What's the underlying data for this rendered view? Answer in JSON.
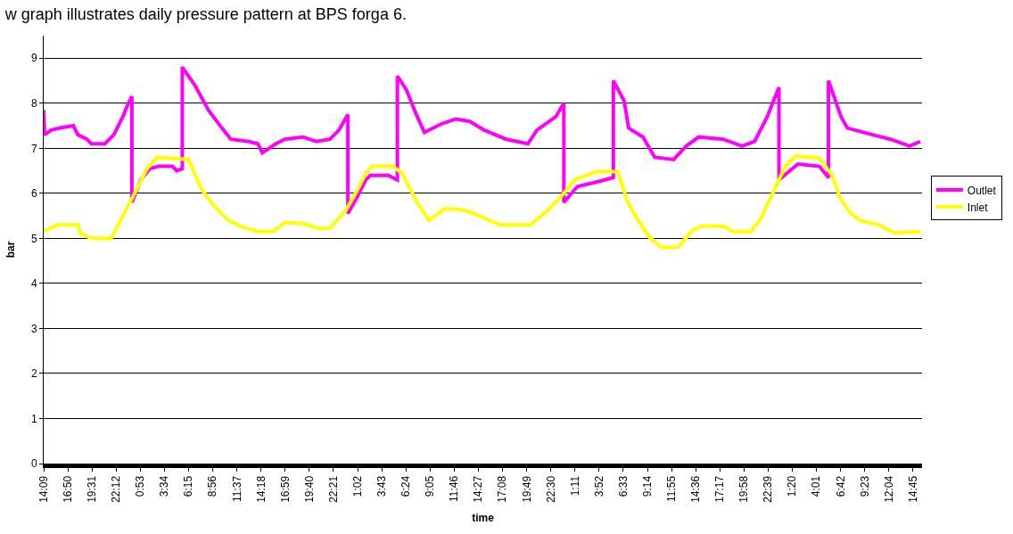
{
  "chart_data": {
    "type": "line",
    "title": "w graph illustrates daily pressure pattern at BPS forga 6.",
    "xlabel": "time",
    "ylabel": "bar",
    "xlim": [
      "--01-01T14:09",
      "--01-05T15:45"
    ],
    "ylim": [
      0,
      9.5
    ],
    "yticks": [
      0,
      1,
      2,
      3,
      4,
      5,
      6,
      7,
      8,
      9
    ],
    "xticks": [
      {
        "value": "--01-01T14:09",
        "label": "14:09"
      },
      {
        "value": "--01-01T16:50",
        "label": "16:50"
      },
      {
        "value": "--01-01T19:31",
        "label": "19:31"
      },
      {
        "value": "--01-01T22:12",
        "label": "22:12"
      },
      {
        "value": "--01-02T00:53",
        "label": "0:53"
      },
      {
        "value": "--01-02T03:34",
        "label": "3:34"
      },
      {
        "value": "--01-02T06:15",
        "label": "6:15"
      },
      {
        "value": "--01-02T08:56",
        "label": "8:56"
      },
      {
        "value": "--01-02T11:37",
        "label": "11:37"
      },
      {
        "value": "--01-02T14:18",
        "label": "14:18"
      },
      {
        "value": "--01-02T16:59",
        "label": "16:59"
      },
      {
        "value": "--01-02T19:40",
        "label": "19:40"
      },
      {
        "value": "--01-02T22:21",
        "label": "22:21"
      },
      {
        "value": "--01-03T01:02",
        "label": "1:02"
      },
      {
        "value": "--01-03T03:43",
        "label": "3:43"
      },
      {
        "value": "--01-03T06:24",
        "label": "6:24"
      },
      {
        "value": "--01-03T09:05",
        "label": "9:05"
      },
      {
        "value": "--01-03T11:46",
        "label": "11:46"
      },
      {
        "value": "--01-03T14:27",
        "label": "14:27"
      },
      {
        "value": "--01-03T17:08",
        "label": "17:08"
      },
      {
        "value": "--01-03T19:49",
        "label": "19:49"
      },
      {
        "value": "--01-03T22:30",
        "label": "22:30"
      },
      {
        "value": "--01-04T01:11",
        "label": "1:11"
      },
      {
        "value": "--01-04T03:52",
        "label": "3:52"
      },
      {
        "value": "--01-04T06:33",
        "label": "6:33"
      },
      {
        "value": "--01-04T09:14",
        "label": "9:14"
      },
      {
        "value": "--01-04T11:55",
        "label": "11:55"
      },
      {
        "value": "--01-04T14:36",
        "label": "14:36"
      },
      {
        "value": "--01-04T17:17",
        "label": "17:17"
      },
      {
        "value": "--01-04T19:58",
        "label": "19:58"
      },
      {
        "value": "--01-04T22:39",
        "label": "22:39"
      },
      {
        "value": "--01-05T01:20",
        "label": "1:20"
      },
      {
        "value": "--01-05T04:01",
        "label": "4:01"
      },
      {
        "value": "--01-05T06:42",
        "label": "6:42"
      },
      {
        "value": "--01-05T09:23",
        "label": "9:23"
      },
      {
        "value": "--01-05T12:04",
        "label": "12:04"
      },
      {
        "value": "--01-05T14:45",
        "label": "14:45"
      }
    ],
    "grid": "y",
    "legend": "right",
    "marker": "none",
    "line_style": "solid",
    "series": [
      {
        "name": "Outlet",
        "color": "#ff00ff",
        "x": [
          "--01-01T14:09",
          "--01-01T14:15",
          "--01-01T14:57",
          "--01-01T15:57",
          "--01-01T17:27",
          "--01-01T17:57",
          "--01-01T18:57",
          "--01-01T19:27",
          "--01-01T20:57",
          "--01-01T21:57",
          "--01-01T22:57",
          "--01-01T23:27",
          "--01-01T23:57",
          "--01-01T23:57",
          "--01-02T00:57",
          "--01-02T01:57",
          "--01-02T02:57",
          "--01-02T04:27",
          "--01-02T04:57",
          "--01-02T05:33",
          "--01-02T05:33",
          "--01-02T06:57",
          "--01-02T08:27",
          "--01-02T09:57",
          "--01-02T10:57",
          "--01-02T12:57",
          "--01-02T13:57",
          "--01-02T14:27",
          "--01-02T15:57",
          "--01-02T16:57",
          "--01-02T18:57",
          "--01-02T20:27",
          "--01-02T21:57",
          "--01-02T22:57",
          "--01-02T23:57",
          "--01-02T23:57",
          "--01-03T00:57",
          "--01-03T01:57",
          "--01-03T02:27",
          "--01-03T04:27",
          "--01-03T05:27",
          "--01-03T05:27",
          "--01-03T06:27",
          "--01-03T07:27",
          "--01-03T08:27",
          "--01-03T09:27",
          "--01-03T10:27",
          "--01-03T11:57",
          "--01-03T13:27",
          "--01-03T15:09",
          "--01-03T17:33",
          "--01-03T19:57",
          "--01-03T20:57",
          "--01-03T23:03",
          "--01-03T23:57",
          "--01-03T23:57",
          "--01-04T01:27",
          "--01-04T03:33",
          "--01-04T05:27",
          "--01-04T05:27",
          "--01-04T06:39",
          "--01-04T07:09",
          "--01-04T08:45",
          "--01-04T10:03",
          "--01-04T12:09",
          "--01-04T13:33",
          "--01-04T14:57",
          "--01-04T17:39",
          "--01-04T19:45",
          "--01-04T21:09",
          "--01-04T22:33",
          "--01-04T23:51",
          "--01-04T23:51",
          "--01-05T01:57",
          "--01-05T04:21",
          "--01-05T05:21",
          "--01-05T05:21",
          "--01-05T06:45",
          "--01-05T07:27",
          "--01-05T10:15",
          "--01-05T12:15",
          "--01-05T14:21",
          "--01-05T15:33"
        ],
        "values": [
          7.85,
          7.3,
          7.4,
          7.45,
          7.5,
          7.3,
          7.2,
          7.1,
          7.1,
          7.3,
          7.7,
          7.95,
          8.15,
          5.8,
          6.3,
          6.55,
          6.6,
          6.6,
          6.5,
          6.55,
          8.8,
          8.4,
          7.85,
          7.45,
          7.2,
          7.15,
          7.1,
          6.9,
          7.1,
          7.2,
          7.25,
          7.15,
          7.2,
          7.4,
          7.75,
          5.55,
          5.9,
          6.3,
          6.4,
          6.4,
          6.3,
          8.6,
          8.3,
          7.8,
          7.35,
          7.45,
          7.55,
          7.65,
          7.6,
          7.4,
          7.2,
          7.1,
          7.4,
          7.7,
          8.0,
          5.8,
          6.15,
          6.25,
          6.35,
          8.5,
          8.05,
          7.45,
          7.25,
          6.8,
          6.75,
          7.05,
          7.25,
          7.2,
          7.05,
          7.15,
          7.7,
          8.35,
          6.3,
          6.65,
          6.6,
          6.35,
          8.5,
          7.7,
          7.45,
          7.3,
          7.2,
          7.05,
          7.15
        ]
      },
      {
        "name": "Inlet",
        "color": "#ffff00",
        "x": [
          "--01-01T14:09",
          "--01-01T15:39",
          "--01-01T17:57",
          "--01-01T18:15",
          "--01-01T19:27",
          "--01-01T21:39",
          "--01-01T22:57",
          "--01-02T00:15",
          "--01-02T01:39",
          "--01-02T02:45",
          "--01-02T06:15",
          "--01-02T07:39",
          "--01-02T08:57",
          "--01-02T10:39",
          "--01-02T12:15",
          "--01-02T13:57",
          "--01-02T15:39",
          "--01-02T16:57",
          "--01-02T18:57",
          "--01-02T20:39",
          "--01-02T21:57",
          "--01-02T23:39",
          "--01-03T00:57",
          "--01-03T01:57",
          "--01-03T02:39",
          "--01-03T04:57",
          "--01-03T05:57",
          "--01-03T07:39",
          "--01-03T08:57",
          "--01-03T10:39",
          "--01-03T12:03",
          "--01-03T13:21",
          "--01-03T15:09",
          "--01-03T16:51",
          "--01-03T20:15",
          "--01-03T22:03",
          "--01-03T23:45",
          "--01-04T01:09",
          "--01-04T03:33",
          "--01-04T05:57",
          "--01-04T06:57",
          "--01-04T08:03",
          "--01-04T09:21",
          "--01-04T10:45",
          "--01-04T12:39",
          "--01-04T14:15",
          "--01-04T15:15",
          "--01-04T17:39",
          "--01-04T18:45",
          "--01-04T20:45",
          "--01-04T21:51",
          "--01-04T23:09",
          "--01-05T00:33",
          "--01-05T01:45",
          "--01-05T04:21",
          "--01-05T05:45",
          "--01-05T06:45",
          "--01-05T07:51",
          "--01-05T08:51",
          "--01-05T10:57",
          "--01-05T12:39",
          "--01-05T15:33"
        ],
        "values": [
          5.15,
          5.3,
          5.3,
          5.1,
          5.0,
          5.0,
          5.5,
          6.0,
          6.55,
          6.8,
          6.75,
          6.1,
          5.75,
          5.4,
          5.25,
          5.15,
          5.15,
          5.35,
          5.33,
          5.22,
          5.22,
          5.6,
          6.05,
          6.45,
          6.6,
          6.6,
          6.45,
          5.8,
          5.4,
          5.65,
          5.65,
          5.6,
          5.45,
          5.3,
          5.3,
          5.6,
          5.95,
          6.3,
          6.48,
          6.48,
          5.85,
          5.45,
          5.05,
          4.8,
          4.8,
          5.18,
          5.27,
          5.27,
          5.15,
          5.15,
          5.45,
          6.0,
          6.6,
          6.83,
          6.78,
          6.4,
          5.85,
          5.55,
          5.4,
          5.3,
          5.12,
          5.15
        ]
      }
    ]
  }
}
